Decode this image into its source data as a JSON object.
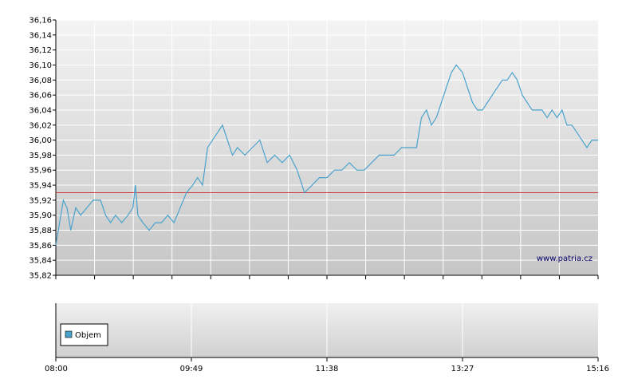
{
  "chart_data": [
    {
      "type": "line",
      "title": "",
      "xlabel": "",
      "ylabel": "",
      "ylim": [
        35.82,
        36.16
      ],
      "y_ticks": [
        "36,16",
        "36,14",
        "36,12",
        "36,10",
        "36,08",
        "36,06",
        "36,04",
        "36,02",
        "36,00",
        "35,98",
        "35,96",
        "35,94",
        "35,92",
        "35,90",
        "35,88",
        "35,86",
        "35,84",
        "35,82"
      ],
      "x_range": [
        "08:00",
        "15:16"
      ],
      "reference_line": {
        "value": 35.93,
        "color": "#cc3333"
      },
      "grid": true,
      "watermark": "www.patria.cz",
      "series": [
        {
          "color": "#4aa3cc",
          "points": [
            [
              "08:00",
              35.86
            ],
            [
              "08:03",
              35.89
            ],
            [
              "08:06",
              35.92
            ],
            [
              "08:09",
              35.91
            ],
            [
              "08:12",
              35.88
            ],
            [
              "08:16",
              35.91
            ],
            [
              "08:20",
              35.9
            ],
            [
              "08:25",
              35.91
            ],
            [
              "08:30",
              35.92
            ],
            [
              "08:36",
              35.92
            ],
            [
              "08:40",
              35.9
            ],
            [
              "08:44",
              35.89
            ],
            [
              "08:48",
              35.9
            ],
            [
              "08:53",
              35.89
            ],
            [
              "08:58",
              35.9
            ],
            [
              "09:02",
              35.91
            ],
            [
              "09:04",
              35.94
            ],
            [
              "09:06",
              35.9
            ],
            [
              "09:10",
              35.89
            ],
            [
              "09:15",
              35.88
            ],
            [
              "09:20",
              35.89
            ],
            [
              "09:25",
              35.89
            ],
            [
              "09:30",
              35.9
            ],
            [
              "09:35",
              35.89
            ],
            [
              "09:40",
              35.91
            ],
            [
              "09:45",
              35.93
            ],
            [
              "09:50",
              35.94
            ],
            [
              "09:54",
              35.95
            ],
            [
              "09:58",
              35.94
            ],
            [
              "10:02",
              35.99
            ],
            [
              "10:06",
              36.0
            ],
            [
              "10:10",
              36.01
            ],
            [
              "10:14",
              36.02
            ],
            [
              "10:18",
              36.0
            ],
            [
              "10:22",
              35.98
            ],
            [
              "10:26",
              35.99
            ],
            [
              "10:32",
              35.98
            ],
            [
              "10:38",
              35.99
            ],
            [
              "10:44",
              36.0
            ],
            [
              "10:50",
              35.97
            ],
            [
              "10:56",
              35.98
            ],
            [
              "11:02",
              35.97
            ],
            [
              "11:08",
              35.98
            ],
            [
              "11:14",
              35.96
            ],
            [
              "11:20",
              35.93
            ],
            [
              "11:26",
              35.94
            ],
            [
              "11:32",
              35.95
            ],
            [
              "11:38",
              35.95
            ],
            [
              "11:44",
              35.96
            ],
            [
              "11:50",
              35.96
            ],
            [
              "11:56",
              35.97
            ],
            [
              "12:02",
              35.96
            ],
            [
              "12:08",
              35.96
            ],
            [
              "12:14",
              35.97
            ],
            [
              "12:20",
              35.98
            ],
            [
              "12:26",
              35.98
            ],
            [
              "12:32",
              35.98
            ],
            [
              "12:38",
              35.99
            ],
            [
              "12:44",
              35.99
            ],
            [
              "12:50",
              35.99
            ],
            [
              "12:54",
              36.03
            ],
            [
              "12:58",
              36.04
            ],
            [
              "13:02",
              36.02
            ],
            [
              "13:06",
              36.03
            ],
            [
              "13:10",
              36.05
            ],
            [
              "13:14",
              36.07
            ],
            [
              "13:18",
              36.09
            ],
            [
              "13:22",
              36.1
            ],
            [
              "13:27",
              36.09
            ],
            [
              "13:31",
              36.07
            ],
            [
              "13:35",
              36.05
            ],
            [
              "13:39",
              36.04
            ],
            [
              "13:43",
              36.04
            ],
            [
              "13:47",
              36.05
            ],
            [
              "13:51",
              36.06
            ],
            [
              "13:55",
              36.07
            ],
            [
              "13:59",
              36.08
            ],
            [
              "14:03",
              36.08
            ],
            [
              "14:07",
              36.09
            ],
            [
              "14:11",
              36.08
            ],
            [
              "14:15",
              36.06
            ],
            [
              "14:19",
              36.05
            ],
            [
              "14:23",
              36.04
            ],
            [
              "14:27",
              36.04
            ],
            [
              "14:31",
              36.04
            ],
            [
              "14:35",
              36.03
            ],
            [
              "14:39",
              36.04
            ],
            [
              "14:43",
              36.03
            ],
            [
              "14:47",
              36.04
            ],
            [
              "14:51",
              36.02
            ],
            [
              "14:55",
              36.02
            ],
            [
              "14:59",
              36.01
            ],
            [
              "15:03",
              36.0
            ],
            [
              "15:07",
              35.99
            ],
            [
              "15:11",
              36.0
            ],
            [
              "15:16",
              36.0
            ]
          ]
        }
      ]
    },
    {
      "type": "bar",
      "legend": [
        "Objem"
      ],
      "legend_color": "#4aa3cc",
      "x_ticks": [
        "08:00",
        "09:49",
        "11:38",
        "13:27",
        "15:16"
      ],
      "grid": true
    }
  ]
}
